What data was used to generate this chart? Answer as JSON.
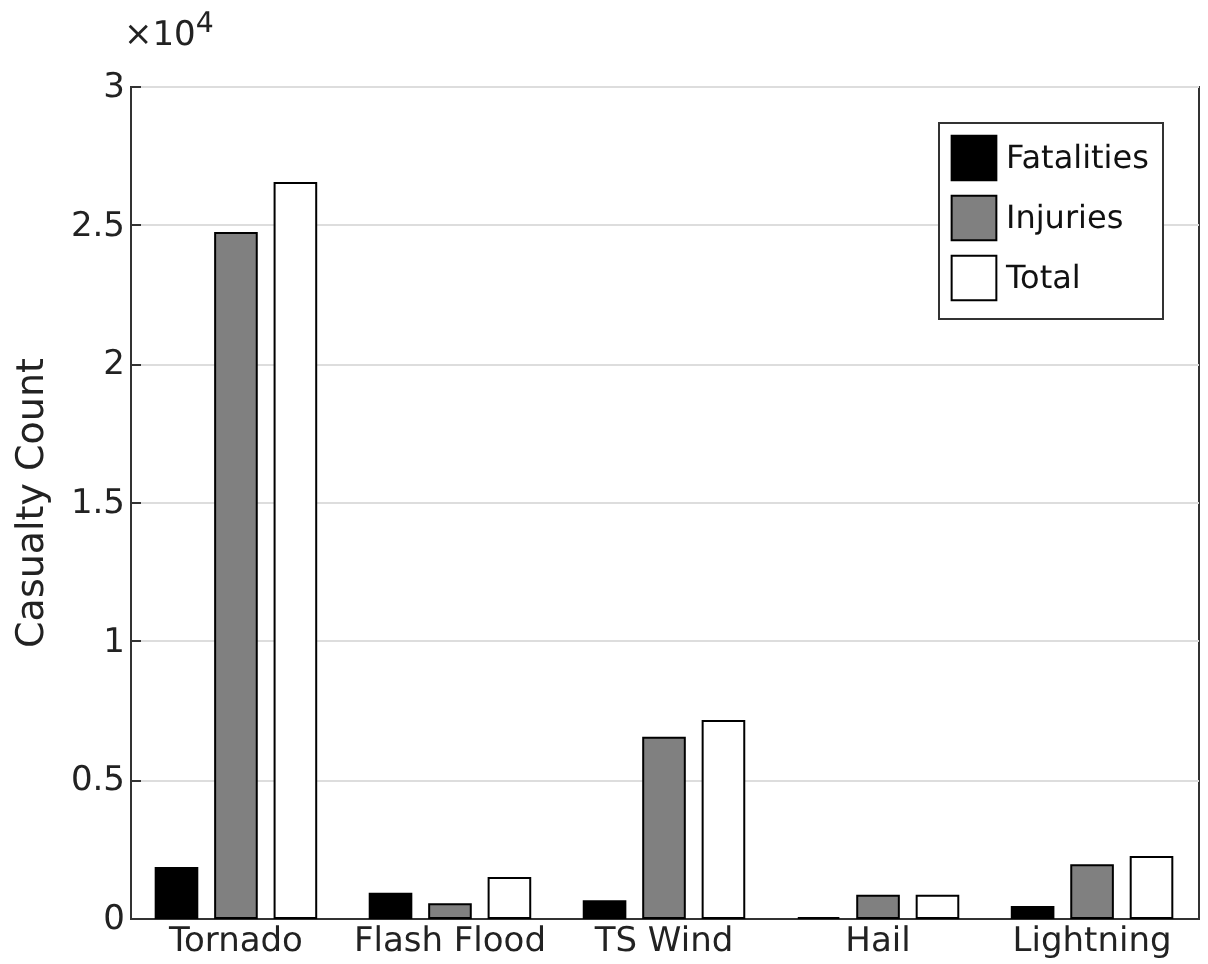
{
  "chart_data": {
    "type": "bar",
    "ylabel": "Casualty Count",
    "annotations": [
      "×10$^{4}$"
    ],
    "categories": [
      "Tornado",
      "Flash Flood",
      "TS Wind",
      "Hail",
      "Lightning"
    ],
    "series": [
      {
        "name": "Fatalities",
        "color": "#000000",
        "values": [
          0.18,
          0.087,
          0.06,
          0,
          0.04
        ]
      },
      {
        "name": "Injuries",
        "color": "#808080",
        "values": [
          2.47,
          0.05,
          0.65,
          0.08,
          0.19
        ]
      },
      {
        "name": "Total",
        "color": "#ffffff",
        "values": [
          2.65,
          0.144,
          0.71,
          0.08,
          0.22
        ]
      }
    ],
    "ylim": [
      0,
      3
    ],
    "yticks": [
      0,
      0.5,
      1,
      1.5,
      2,
      2.5,
      3
    ],
    "grid": "y",
    "legend": "top right"
  }
}
